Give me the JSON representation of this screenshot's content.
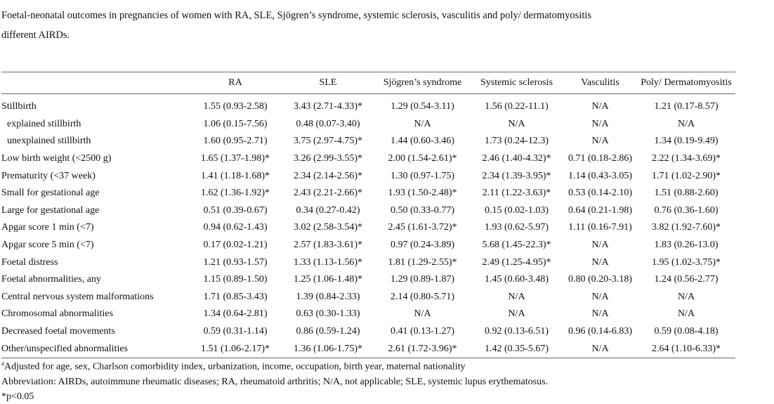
{
  "caption": "Foetal-neonatal outcomes in pregnancies of women with RA, SLE, Sjögren’s syndrome, systemic sclerosis, vasculitis and poly/ dermatomyositis different AIRDs.",
  "table": {
    "header": [
      "RA",
      "SLE",
      "Sjögren’s syndrome",
      "Systemic sclerosis",
      "Vasculitis",
      "Poly/ Dermatomyositis"
    ],
    "rows": [
      [
        "Stillbirth",
        "1.55 (0.93-2.58)",
        "3.43 (2.71-4.33)*",
        "1.29 (0.54-3.11)",
        "1.56 (0.22-11.1)",
        "N/A",
        "1.21 (0.17-8.57)"
      ],
      [
        "explained stillbirth",
        "1.06 (0.15-7.56)",
        "0.48 (0.07-3.40)",
        "N/A",
        "N/A",
        "N/A",
        "N/A"
      ],
      [
        "unexplained stillbirth",
        "1.60 (0.95-2.71)",
        "3.75 (2.97-4.75)*",
        "1.44 (0.60-3.46)",
        "1.73 (0.24-12.3)",
        "N/A",
        "1.34 (0.19-9.49)"
      ],
      [
        "Low birth weight (<2500 g)",
        "1.65 (1.37-1.98)*",
        "3.26 (2.99-3.55)*",
        "2.00 (1.54-2.61)*",
        "2.46 (1.40-4.32)*",
        "0.71 (0.18-2.86)",
        "2.22 (1.34-3.69)*"
      ],
      [
        "Prematurity (<37 week)",
        "1.41 (1.18-1.68)*",
        "2.34 (2.14-2.56)*",
        "1.30 (0.97-1.75)",
        "2.34 (1.39-3.95)*",
        "1.14 (0.43-3.05)",
        "1.71 (1.02-2.90)*"
      ],
      [
        "Small for gestational age",
        "1.62 (1.36-1.92)*",
        "2.43 (2.21-2.66)*",
        "1.93 (1.50-2.48)*",
        "2.11 (1.22-3.63)*",
        "0.53 (0.14-2.10)",
        "1.51 (0.88-2.60)"
      ],
      [
        "Large for gestational age",
        "0.51 (0.39-0.67)",
        "0.34 (0.27-0.42)",
        "0.50 (0.33-0.77)",
        "0.15 (0.02-1.03)",
        "0.64 (0.21-1.98)",
        "0.76 (0.36-1.60)"
      ],
      [
        "Apgar score 1 min (<7)",
        "0.94 (0.62-1.43)",
        "3.02 (2.58-3.54)*",
        "2.45 (1.61-3.72)*",
        "1.93 (0.62-5.97)",
        "1.11 (0.16-7.91)",
        "3.82 (1.92-7.60)*"
      ],
      [
        "Apgar score 5 min (<7)",
        "0.17 (0.02-1.21)",
        "2.57 (1.83-3.61)*",
        "0.97 (0.24-3.89)",
        "5.68 (1.45-22.3)*",
        "N/A",
        "1.83 (0.26-13.0)"
      ],
      [
        "Foetal distress",
        "1.21 (0.93-1.57)",
        "1.33 (1.13-1.56)*",
        "1.81 (1.29-2.55)*",
        "2.49 (1.25-4.95)*",
        "N/A",
        "1.95 (1.02-3.75)*"
      ],
      [
        "Foetal abnormalities, any",
        "1.15 (0.89-1.50)",
        "1.25 (1.06-1.48)*",
        "1.29 (0.89-1.87)",
        "1.45 (0.60-3.48)",
        "0.80 (0.20-3.18)",
        "1.24 (0.56-2.77)"
      ],
      [
        "Central nervous system malformations",
        "1.71 (0.85-3.43)",
        "1.39 (0.84-2.33)",
        "2.14 (0.80-5.71)",
        "N/A",
        "N/A",
        "N/A"
      ],
      [
        "Chromosomal abnormalities",
        "1.34 (0.64-2.81)",
        "0.63 (0.30-1.33)",
        "N/A",
        "N/A",
        "N/A",
        "N/A"
      ],
      [
        "Decreased foetal movements",
        "0.59 (0.31-1.14)",
        "0.86 (0.59-1.24)",
        "0.41 (0.13-1.27)",
        "0.92 (0.13-6.51)",
        "0.96 (0.14-6.83)",
        "0.59 (0.08-4.18)"
      ],
      [
        "Other/unspecified abnormalities",
        "1.51 (1.06-2.17)*",
        "1.36 (1.06-1.75)*",
        "2.61 (1.72-3.96)*",
        "1.42 (0.35-5.67)",
        "N/A",
        "2.64 (1.10-6.33)*"
      ]
    ]
  },
  "footnotes": [
    {
      "marker": "a",
      "text": "Adjusted for age, sex, Charlson comorbidity index, urbanization, income, occupation, birth year, maternal nationality"
    },
    {
      "text": "Abbreviation: AIRDs, autoimmune rheumatic diseases; RA, rheumatoid arthritis; N/A, not applicable; SLE, systemic lupus erythematosus."
    },
    {
      "text": "*p<0.05"
    }
  ]
}
